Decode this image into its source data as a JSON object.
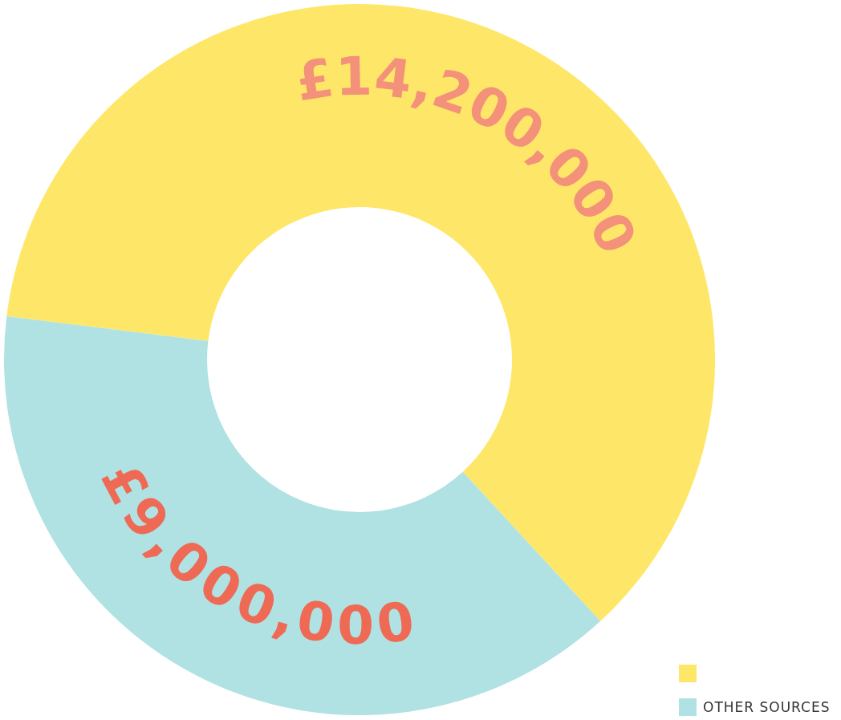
{
  "chart_data": {
    "type": "donut",
    "categories": [
      null,
      "OTHER SOURCES"
    ],
    "values": [
      14200000,
      9000000
    ],
    "colors": [
      "#fee768",
      "#b0e2e3"
    ],
    "value_labels": [
      "£14,200,000",
      "£9,000,000"
    ],
    "legend": "bottom right"
  }
}
